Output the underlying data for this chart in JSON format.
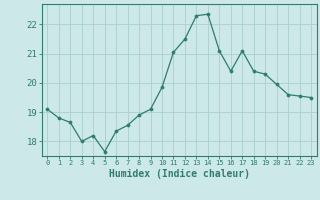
{
  "x": [
    0,
    1,
    2,
    3,
    4,
    5,
    6,
    7,
    8,
    9,
    10,
    11,
    12,
    13,
    14,
    15,
    16,
    17,
    18,
    19,
    20,
    21,
    22,
    23
  ],
  "y": [
    19.1,
    18.8,
    18.65,
    18.0,
    18.2,
    17.65,
    18.35,
    18.55,
    18.9,
    19.1,
    19.85,
    21.05,
    21.5,
    22.3,
    22.35,
    21.1,
    20.4,
    21.1,
    20.4,
    20.3,
    19.95,
    19.6,
    19.55,
    19.5
  ],
  "xlabel": "Humidex (Indice chaleur)",
  "xlim": [
    -0.5,
    23.5
  ],
  "ylim": [
    17.5,
    22.7
  ],
  "yticks": [
    18,
    19,
    20,
    21,
    22
  ],
  "xticks": [
    0,
    1,
    2,
    3,
    4,
    5,
    6,
    7,
    8,
    9,
    10,
    11,
    12,
    13,
    14,
    15,
    16,
    17,
    18,
    19,
    20,
    21,
    22,
    23
  ],
  "line_color": "#2e7d6e",
  "marker_color": "#2e7d6e",
  "bg_color": "#cce8e8",
  "grid_color": "#aad0d0",
  "xlabel_color": "#2e7d6e",
  "tick_color": "#2e7d6e",
  "axis_color": "#2e7d6e"
}
